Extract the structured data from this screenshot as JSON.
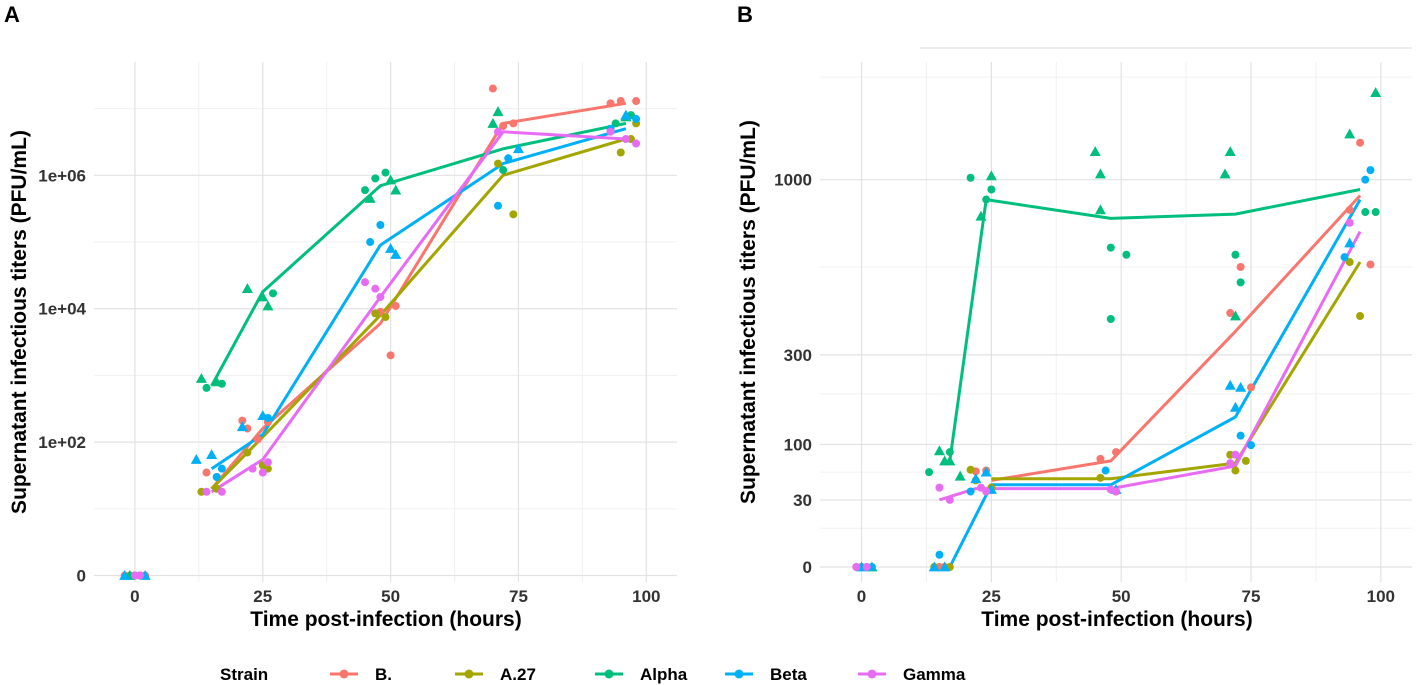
{
  "legend": {
    "title": "Strain",
    "colors": {
      "B.": "#F8766D",
      "A.27": "#A3A500",
      "Alpha": "#00BF7D",
      "Beta": "#00B0F6",
      "Gamma": "#E76BF3"
    },
    "shapes": {
      "circle": "circle",
      "triangle": "triangle"
    }
  },
  "chart_data": [
    {
      "panel": "A",
      "type": "line",
      "scale": "log",
      "xlabel": "Time post-infection (hours)",
      "ylabel": "Supernatant infectious titers (PFU/mL)",
      "xlim": [
        -8,
        106
      ],
      "x_ticks": [
        0,
        25,
        50,
        75,
        100
      ],
      "y_ticks": [
        {
          "v": 1,
          "label": "0"
        },
        {
          "v": 100,
          "label": "1e+02"
        },
        {
          "v": 10000,
          "label": "1e+04"
        },
        {
          "v": 1000000,
          "label": "1e+06"
        }
      ],
      "y_grid_minor": [
        10,
        1000,
        100000,
        10000000
      ],
      "ylim": [
        0.8,
        50000000
      ],
      "series": [
        {
          "name": "B.",
          "x": [
            15,
            25,
            48,
            72,
            96
          ],
          "y": [
            20,
            160,
            6000,
            6000000,
            12000000
          ],
          "points": [
            [
              14,
              35,
              "c"
            ],
            [
              16,
              30,
              "c"
            ],
            [
              21,
              210,
              "c"
            ],
            [
              22,
              160,
              "c"
            ],
            [
              24,
              110,
              "c"
            ],
            [
              26,
              200,
              "c"
            ],
            [
              48,
              9000,
              "c"
            ],
            [
              50,
              2000,
              "c"
            ],
            [
              51,
              11000,
              "c"
            ],
            [
              70,
              20000000,
              "c"
            ],
            [
              72,
              5500000,
              "c"
            ],
            [
              74,
              6000000,
              "c"
            ],
            [
              93,
              12000000,
              "c"
            ],
            [
              95,
              13000000,
              "c"
            ],
            [
              98,
              13000000,
              "c"
            ],
            [
              -2,
              1,
              "c"
            ],
            [
              0,
              1,
              "c"
            ],
            [
              2,
              1,
              "c"
            ]
          ]
        },
        {
          "name": "A.27",
          "x": [
            15,
            25,
            48,
            72,
            96
          ],
          "y": [
            20,
            120,
            8000,
            1000000,
            3500000
          ],
          "points": [
            [
              13,
              18,
              "c"
            ],
            [
              16,
              20,
              "c"
            ],
            [
              22,
              70,
              "c"
            ],
            [
              25,
              45,
              "c"
            ],
            [
              26,
              40,
              "c"
            ],
            [
              47,
              8500,
              "c"
            ],
            [
              49,
              7500,
              "c"
            ],
            [
              71,
              1500000,
              "c"
            ],
            [
              74,
              260000,
              "c"
            ],
            [
              95,
              2200000,
              "c"
            ],
            [
              97,
              3500000,
              "c"
            ],
            [
              98,
              6000000,
              "c"
            ],
            [
              -1,
              1,
              "c"
            ],
            [
              1,
              1,
              "c"
            ]
          ]
        },
        {
          "name": "Alpha",
          "x": [
            15,
            25,
            48,
            72,
            96
          ],
          "y": [
            700,
            18000,
            700000,
            2500000,
            6000000
          ],
          "points": [
            [
              13,
              900,
              "t"
            ],
            [
              14,
              650,
              "c"
            ],
            [
              16,
              800,
              "t"
            ],
            [
              17,
              750,
              "c"
            ],
            [
              22,
              20000,
              "t"
            ],
            [
              25,
              15000,
              "t"
            ],
            [
              26,
              11000,
              "t"
            ],
            [
              27,
              17000,
              "c"
            ],
            [
              45,
              600000,
              "c"
            ],
            [
              46,
              450000,
              "t"
            ],
            [
              47,
              900000,
              "c"
            ],
            [
              49,
              1100000,
              "c"
            ],
            [
              50,
              850000,
              "t"
            ],
            [
              51,
              600000,
              "t"
            ],
            [
              70,
              6000000,
              "t"
            ],
            [
              71,
              9000000,
              "t"
            ],
            [
              72,
              1200000,
              "c"
            ],
            [
              94,
              6000000,
              "c"
            ],
            [
              96,
              7500000,
              "t"
            ],
            [
              97,
              8000000,
              "c"
            ],
            [
              -1,
              1,
              "t"
            ],
            [
              1,
              1,
              "c"
            ]
          ]
        },
        {
          "name": "Beta",
          "x": [
            15,
            25,
            48,
            72,
            96
          ],
          "y": [
            40,
            130,
            90000,
            1500000,
            5000000
          ],
          "points": [
            [
              12,
              55,
              "t"
            ],
            [
              15,
              65,
              "t"
            ],
            [
              16,
              30,
              "c"
            ],
            [
              17,
              40,
              "c"
            ],
            [
              21,
              170,
              "t"
            ],
            [
              25,
              250,
              "t"
            ],
            [
              26,
              230,
              "c"
            ],
            [
              46,
              100000,
              "c"
            ],
            [
              48,
              180000,
              "c"
            ],
            [
              50,
              80000,
              "t"
            ],
            [
              51,
              65000,
              "t"
            ],
            [
              71,
              350000,
              "c"
            ],
            [
              73,
              1800000,
              "c"
            ],
            [
              75,
              2500000,
              "t"
            ],
            [
              93,
              5000000,
              "c"
            ],
            [
              96,
              8000000,
              "t"
            ],
            [
              98,
              7000000,
              "c"
            ],
            [
              -2,
              1,
              "t"
            ],
            [
              0,
              1,
              "c"
            ],
            [
              2,
              1,
              "t"
            ]
          ]
        },
        {
          "name": "Gamma",
          "x": [
            15,
            25,
            48,
            72,
            96
          ],
          "y": [
            18,
            55,
            15000,
            4500000,
            3500000
          ],
          "points": [
            [
              14,
              18,
              "c"
            ],
            [
              17,
              18,
              "c"
            ],
            [
              23,
              40,
              "c"
            ],
            [
              25,
              35,
              "c"
            ],
            [
              26,
              50,
              "c"
            ],
            [
              45,
              25000,
              "c"
            ],
            [
              47,
              20000,
              "c"
            ],
            [
              48,
              15000,
              "c"
            ],
            [
              71,
              4500000,
              "c"
            ],
            [
              93,
              4500000,
              "c"
            ],
            [
              96,
              3500000,
              "c"
            ],
            [
              98,
              3000000,
              "c"
            ],
            [
              0,
              1,
              "c"
            ],
            [
              1,
              1,
              "c"
            ]
          ]
        }
      ]
    },
    {
      "panel": "B",
      "type": "line",
      "scale": "sqrt",
      "xlabel": "Time post-infection (hours)",
      "ylabel": "Supernatant infectious titers (PFU/mL)",
      "xlim": [
        -8,
        106
      ],
      "x_ticks": [
        0,
        25,
        50,
        75,
        100
      ],
      "y_ticks": [
        {
          "v": 0,
          "label": "0"
        },
        {
          "v": 30,
          "label": "30"
        },
        {
          "v": 100,
          "label": "100"
        },
        {
          "v": 300,
          "label": "300"
        },
        {
          "v": 1000,
          "label": "1000"
        }
      ],
      "y_grid_minor": [
        10,
        60,
        200,
        600,
        1600
      ],
      "ylim": [
        -1.5,
        1700
      ],
      "series": [
        {
          "name": "B.",
          "x": [
            25,
            48,
            72,
            96
          ],
          "y": [
            50,
            75,
            370,
            920
          ],
          "points": [
            [
              22,
              61,
              "c"
            ],
            [
              24,
              62,
              "c"
            ],
            [
              46,
              78,
              "c"
            ],
            [
              49,
              88,
              "c"
            ],
            [
              71,
              430,
              "c"
            ],
            [
              73,
              600,
              "c"
            ],
            [
              75,
              215,
              "c"
            ],
            [
              94,
              850,
              "c"
            ],
            [
              96,
              1200,
              "c"
            ],
            [
              98,
              610,
              "c"
            ],
            [
              -1,
              0,
              "c"
            ],
            [
              15,
              0,
              "c"
            ],
            [
              16,
              0,
              "c"
            ]
          ]
        },
        {
          "name": "A.27",
          "x": [
            25,
            48,
            72,
            96
          ],
          "y": [
            52,
            52,
            72,
            620
          ],
          "points": [
            [
              21,
              63,
              "c"
            ],
            [
              22,
              50,
              "c"
            ],
            [
              25,
              42,
              "c"
            ],
            [
              46,
              53,
              "c"
            ],
            [
              49,
              38,
              "c"
            ],
            [
              71,
              84,
              "c"
            ],
            [
              72,
              62,
              "c"
            ],
            [
              74,
              75,
              "c"
            ],
            [
              94,
              620,
              "c"
            ],
            [
              96,
              420,
              "c"
            ],
            [
              0,
              0,
              "c"
            ],
            [
              14,
              0,
              "c"
            ],
            [
              17,
              0,
              "c"
            ]
          ]
        },
        {
          "name": "Alpha",
          "x": [
            17,
            24,
            48,
            72,
            96
          ],
          "y": [
            75,
            900,
            810,
            830,
            950
          ],
          "points": [
            [
              13,
              60,
              "c"
            ],
            [
              15,
              90,
              "t"
            ],
            [
              16,
              75,
              "t"
            ],
            [
              17,
              75,
              "t"
            ],
            [
              17,
              88,
              "c"
            ],
            [
              19,
              55,
              "t"
            ],
            [
              21,
              1010,
              "c"
            ],
            [
              23,
              820,
              "t"
            ],
            [
              24,
              900,
              "c"
            ],
            [
              25,
              1020,
              "t"
            ],
            [
              25,
              950,
              "c"
            ],
            [
              45,
              1150,
              "t"
            ],
            [
              46,
              1030,
              "t"
            ],
            [
              46,
              850,
              "t"
            ],
            [
              48,
              680,
              "c"
            ],
            [
              48,
              410,
              "c"
            ],
            [
              51,
              650,
              "c"
            ],
            [
              70,
              1030,
              "t"
            ],
            [
              71,
              1150,
              "t"
            ],
            [
              72,
              420,
              "t"
            ],
            [
              72,
              650,
              "c"
            ],
            [
              73,
              540,
              "c"
            ],
            [
              94,
              1250,
              "t"
            ],
            [
              97,
              840,
              "c"
            ],
            [
              99,
              1500,
              "t"
            ],
            [
              99,
              840,
              "c"
            ],
            [
              1,
              0,
              "c"
            ],
            [
              2,
              0,
              "t"
            ]
          ]
        },
        {
          "name": "Beta",
          "x": [
            17,
            25,
            48,
            72,
            96
          ],
          "y": [
            0,
            45,
            45,
            150,
            900
          ],
          "points": [
            [
              14,
              0,
              "t"
            ],
            [
              15,
              1,
              "c"
            ],
            [
              16,
              0,
              "t"
            ],
            [
              21,
              38,
              "c"
            ],
            [
              22,
              52,
              "t"
            ],
            [
              24,
              60,
              "t"
            ],
            [
              25,
              40,
              "t"
            ],
            [
              47,
              62,
              "c"
            ],
            [
              49,
              40,
              "t"
            ],
            [
              71,
              220,
              "t"
            ],
            [
              72,
              170,
              "t"
            ],
            [
              73,
              215,
              "t"
            ],
            [
              73,
              115,
              "c"
            ],
            [
              75,
              99,
              "c"
            ],
            [
              93,
              640,
              "c"
            ],
            [
              94,
              700,
              "t"
            ],
            [
              97,
              1000,
              "c"
            ],
            [
              98,
              1050,
              "c"
            ],
            [
              0,
              0,
              "t"
            ],
            [
              2,
              0,
              "c"
            ]
          ]
        },
        {
          "name": "Gamma",
          "x": [
            15,
            22,
            48,
            72,
            96
          ],
          "y": [
            30,
            41,
            41,
            68,
            750
          ],
          "points": [
            [
              15,
              42,
              "c"
            ],
            [
              17,
              30,
              "c"
            ],
            [
              23,
              42,
              "c"
            ],
            [
              24,
              38,
              "c"
            ],
            [
              48,
              40,
              "c"
            ],
            [
              49,
              38,
              "c"
            ],
            [
              71,
              72,
              "c"
            ],
            [
              72,
              84,
              "c"
            ],
            [
              94,
              790,
              "c"
            ],
            [
              -1,
              0,
              "c"
            ],
            [
              1,
              0,
              "c"
            ]
          ]
        }
      ]
    }
  ]
}
